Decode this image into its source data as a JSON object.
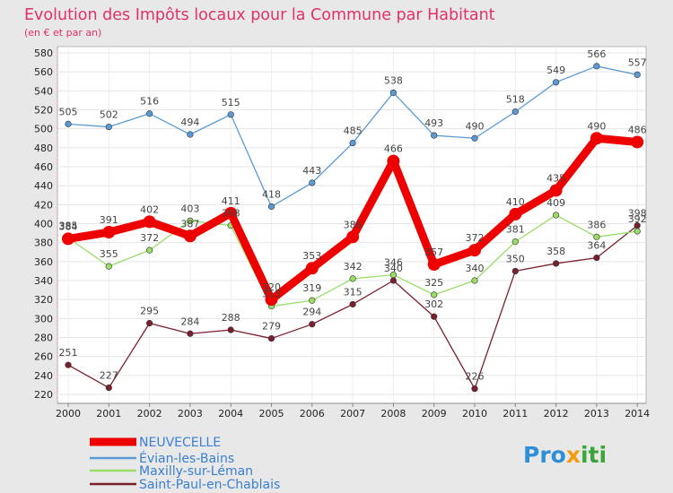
{
  "chart_data": {
    "type": "line",
    "title": "Evolution des Impôts locaux pour la Commune par Habitant",
    "subtitle": "(en € et par an)",
    "x": [
      "2000",
      "2001",
      "2002",
      "2003",
      "2004",
      "2005",
      "2006",
      "2007",
      "2008",
      "2009",
      "2010",
      "2011",
      "2012",
      "2013",
      "2014"
    ],
    "ylim": [
      220,
      580
    ],
    "yticks": [
      220,
      240,
      260,
      280,
      300,
      320,
      340,
      360,
      380,
      400,
      420,
      440,
      460,
      480,
      500,
      520,
      540,
      560,
      580
    ],
    "grid": true,
    "legend_position": "bottom-left",
    "series": [
      {
        "name": "NEUVECELLE",
        "color": "#ee0000",
        "values": [
          384,
          391,
          402,
          387,
          411,
          320,
          353,
          386,
          466,
          357,
          372,
          410,
          435,
          490,
          486
        ]
      },
      {
        "name": "Évian-les-Bains",
        "color": "#5b9bd5",
        "values": [
          505,
          502,
          516,
          494,
          515,
          418,
          443,
          485,
          538,
          493,
          490,
          518,
          549,
          566,
          557
        ]
      },
      {
        "name": "Maxilly-sur-Léman",
        "color": "#99dd66",
        "values": [
          385,
          355,
          372,
          403,
          398,
          313,
          319,
          342,
          346,
          325,
          340,
          381,
          409,
          386,
          392
        ]
      },
      {
        "name": "Saint-Paul-en-Chablais",
        "color": "#7a1f2b",
        "values": [
          251,
          227,
          295,
          284,
          288,
          279,
          294,
          315,
          340,
          302,
          226,
          350,
          358,
          364,
          398
        ]
      }
    ]
  },
  "brand": {
    "name": "Proxiti",
    "parts": [
      "Pro",
      "x",
      "iti"
    ]
  }
}
